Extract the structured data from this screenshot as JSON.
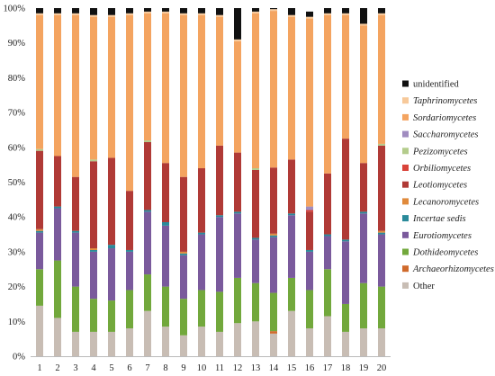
{
  "chart_data": {
    "type": "bar",
    "stacked": true,
    "title": "",
    "xlabel": "",
    "ylabel": "",
    "ylim": [
      0,
      100
    ],
    "yticks": [
      0,
      10,
      20,
      30,
      40,
      50,
      60,
      70,
      80,
      90,
      100
    ],
    "ytick_format": "{}%",
    "grid": false,
    "legend_position": "right",
    "categories": [
      "1",
      "2",
      "3",
      "4",
      "5",
      "6",
      "7",
      "8",
      "9",
      "10",
      "11",
      "12",
      "13",
      "14",
      "15",
      "16",
      "17",
      "18",
      "19",
      "20"
    ],
    "series": [
      {
        "name": "Other",
        "italic": false,
        "color": "#c8bdb4",
        "values": [
          14.5,
          11.0,
          7.0,
          7.0,
          7.0,
          8.0,
          13.0,
          8.5,
          6.0,
          8.5,
          7.0,
          9.5,
          10.0,
          6.5,
          13.0,
          8.0,
          11.5,
          7.0,
          8.0,
          8.0
        ]
      },
      {
        "name": "Archaeorhizomycetes",
        "italic": true,
        "color": "#d06a2c",
        "values": [
          0,
          0,
          0,
          0,
          0,
          0,
          0,
          0,
          0,
          0,
          0,
          0,
          0,
          0.7,
          0,
          0,
          0,
          0,
          0,
          0
        ]
      },
      {
        "name": "Dothideomycetes",
        "italic": true,
        "color": "#72a83c",
        "values": [
          10.5,
          16.5,
          13.0,
          9.5,
          9.0,
          11.0,
          10.5,
          11.5,
          10.5,
          10.5,
          11.5,
          13.0,
          11.0,
          11.0,
          9.5,
          11.0,
          13.5,
          8.0,
          13.0,
          12.0
        ]
      },
      {
        "name": "Eurotiomycetes",
        "italic": true,
        "color": "#7a5a9c",
        "values": [
          10.5,
          15.0,
          15.5,
          13.5,
          15.0,
          11.0,
          18.0,
          17.5,
          12.5,
          16.0,
          21.5,
          18.5,
          12.5,
          16.0,
          18.0,
          11.0,
          9.5,
          18.0,
          20.0,
          15.0
        ]
      },
      {
        "name": "Incertae sedis",
        "italic": true,
        "color": "#2a8a9a",
        "values": [
          0.5,
          0.5,
          0.5,
          0.5,
          1.0,
          0.5,
          0.5,
          1.0,
          0.5,
          0.5,
          0.5,
          0.5,
          0.5,
          0.5,
          0.5,
          0.5,
          0.5,
          0.5,
          0.5,
          0.5
        ]
      },
      {
        "name": "Lecanoromycetes",
        "italic": true,
        "color": "#e08a3c",
        "values": [
          0.5,
          0,
          0,
          0.5,
          0,
          0,
          0,
          0,
          0.5,
          0,
          0,
          0,
          0,
          0.5,
          0,
          0,
          0,
          0,
          0,
          0.5
        ]
      },
      {
        "name": "Leotiomycetes",
        "italic": true,
        "color": "#b03a36",
        "values": [
          22.5,
          14.5,
          15.5,
          25.0,
          25.0,
          17.0,
          19.5,
          17.0,
          21.5,
          18.5,
          20.0,
          17.0,
          19.5,
          19.0,
          15.5,
          11.0,
          17.5,
          29.0,
          14.0,
          24.5
        ]
      },
      {
        "name": "Orbiliomycetes",
        "italic": true,
        "color": "#d9443a",
        "values": [
          0,
          0,
          0,
          0,
          0,
          0,
          0,
          0,
          0,
          0,
          0,
          0,
          0,
          0,
          0,
          0.5,
          0,
          0,
          0,
          0
        ]
      },
      {
        "name": "Pezizomycetes",
        "italic": true,
        "color": "#b4cc8c",
        "values": [
          0.5,
          0,
          0,
          0.5,
          0,
          0,
          0.5,
          0,
          0,
          0,
          0,
          0,
          0.5,
          0,
          0,
          0,
          0,
          0,
          0,
          0.5
        ]
      },
      {
        "name": "Saccharomycetes",
        "italic": true,
        "color": "#a08cc0",
        "values": [
          0,
          0,
          0,
          0,
          0,
          0,
          0,
          0,
          0,
          0,
          0,
          0,
          0,
          0,
          0,
          1.0,
          0,
          0,
          0,
          0
        ]
      },
      {
        "name": "Sordariomycetes",
        "italic": true,
        "color": "#f4a460",
        "values": [
          38.5,
          40.5,
          46.5,
          41.0,
          40.5,
          50.5,
          36.5,
          43.0,
          46.5,
          44.0,
          37.0,
          32.0,
          44.5,
          45.0,
          41.0,
          54.0,
          45.5,
          35.5,
          39.5,
          37.0
        ]
      },
      {
        "name": "Taphrinomycetes",
        "italic": true,
        "color": "#f7c99a",
        "values": [
          0.5,
          0.5,
          0.5,
          0.5,
          0.5,
          0.5,
          0.5,
          0.5,
          0.5,
          0.5,
          0.5,
          0.5,
          0.5,
          0.5,
          0.5,
          0.5,
          0.5,
          0.5,
          0.5,
          0.5
        ]
      },
      {
        "name": "unidentified",
        "italic": false,
        "color": "#111111",
        "values": [
          1.5,
          1.5,
          1.5,
          2.5,
          2.0,
          1.5,
          1.0,
          1.5,
          1.5,
          3.0,
          2.0,
          9.5,
          1.0,
          0.8,
          2.0,
          1.5,
          1.5,
          1.5,
          4.5,
          1.5
        ]
      }
    ],
    "legend_order": [
      "unidentified",
      "Taphrinomycetes",
      "Sordariomycetes",
      "Saccharomycetes",
      "Pezizomycetes",
      "Orbiliomycetes",
      "Leotiomycetes",
      "Lecanoromycetes",
      "Incertae sedis",
      "Eurotiomycetes",
      "Dothideomycetes",
      "Archaeorhizomycetes",
      "Other"
    ]
  }
}
